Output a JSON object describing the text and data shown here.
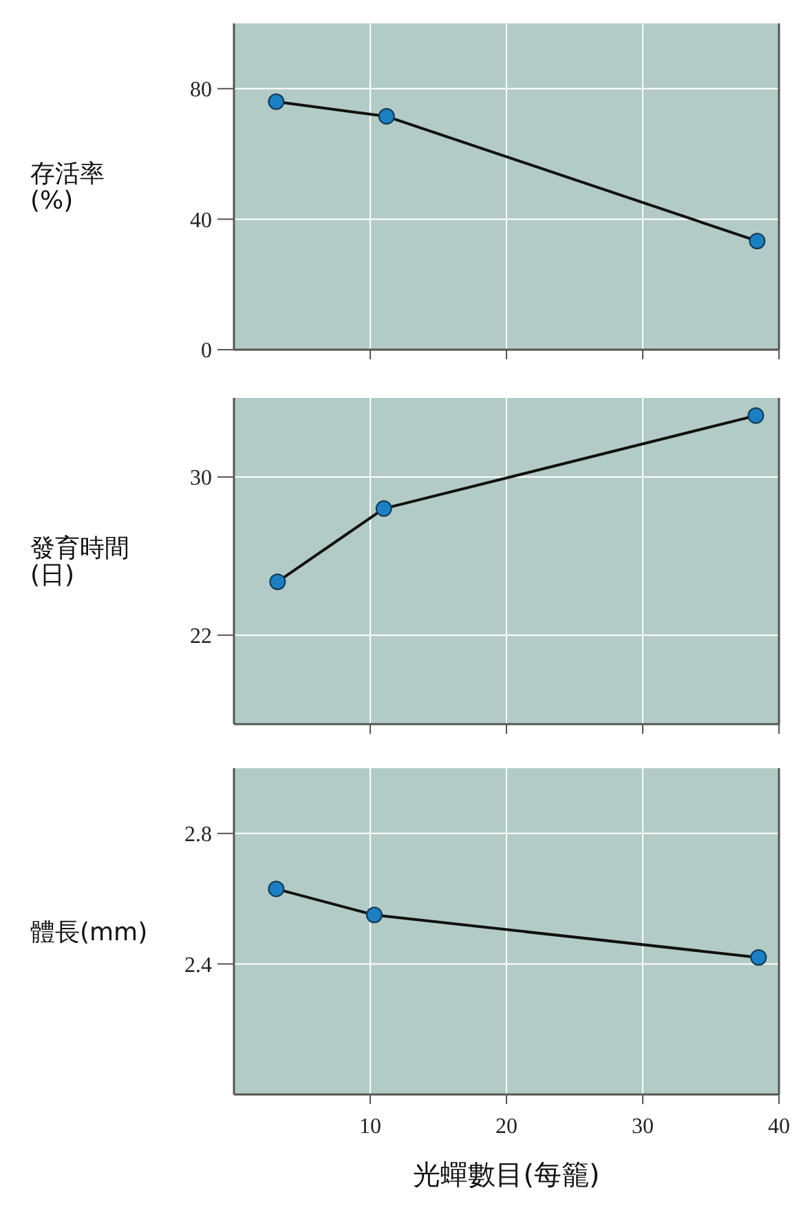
{
  "chart_data": [
    {
      "type": "line",
      "ylabel": "存活率\n(%)",
      "x": [
        3.1,
        11.2,
        38.4
      ],
      "xlim": [
        0,
        40
      ],
      "xticks": [
        10,
        20,
        30,
        40
      ],
      "ylim": [
        0,
        100
      ],
      "yticks": [
        0,
        40,
        80
      ],
      "grid": true,
      "marker": "circle",
      "tick_labels": "y",
      "series": [
        {
          "color": "#1b7fc4",
          "values": [
            76,
            71.5,
            33.3
          ]
        }
      ]
    },
    {
      "type": "line",
      "ylabel": "發育時間\n(日)",
      "x": [
        3.2,
        11,
        38.3
      ],
      "xlim": [
        0,
        40
      ],
      "xticks": [
        10,
        20,
        30,
        40
      ],
      "ylim": [
        17.5,
        34
      ],
      "yticks": [
        22,
        30
      ],
      "grid": true,
      "marker": "circle",
      "tick_labels": "y",
      "series": [
        {
          "color": "#1b7fc4",
          "values": [
            24.7,
            28.4,
            33.1
          ]
        }
      ]
    },
    {
      "type": "line",
      "ylabel": "體長(mm)",
      "xlabel": "光蟬數目(每籠)",
      "x": [
        3.1,
        10.3,
        38.5
      ],
      "xlim": [
        0,
        40
      ],
      "xticks": [
        10,
        20,
        30,
        40
      ],
      "ylim": [
        2.0,
        3.0
      ],
      "yticks": [
        2.4,
        2.8
      ],
      "grid": true,
      "marker": "circle",
      "series": [
        {
          "color": "#1b7fc4",
          "values": [
            2.63,
            2.55,
            2.42
          ]
        }
      ]
    }
  ]
}
